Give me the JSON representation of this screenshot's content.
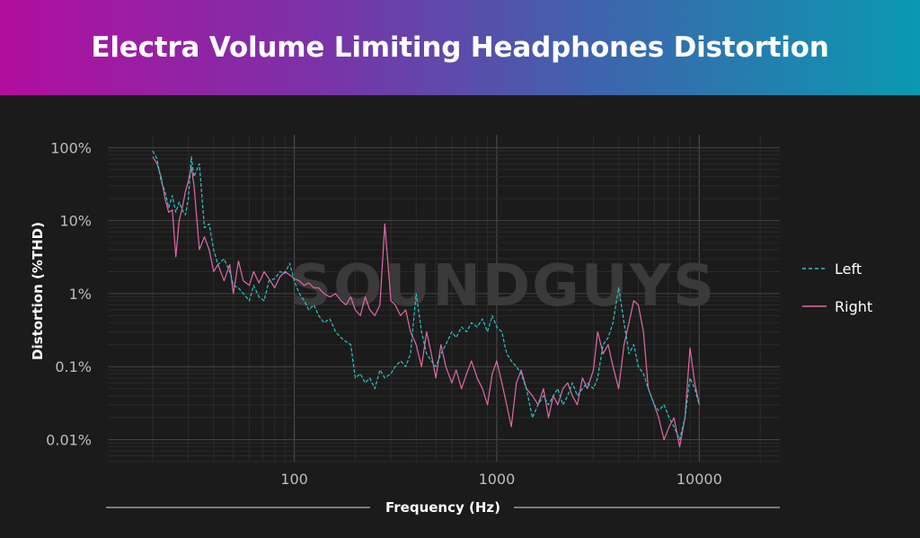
{
  "title": "Electra Volume Limiting Headphones Distortion",
  "watermark": "SOUNDGUYS",
  "chart_data": {
    "type": "line",
    "title": "Electra Volume Limiting Headphones Distortion",
    "xlabel": "Frequency (Hz)",
    "ylabel": "Distortion (%THD)",
    "x_scale": "log",
    "y_scale": "log",
    "xlim": [
      12,
      25000
    ],
    "ylim": [
      0.005,
      150
    ],
    "x_ticks": [
      100,
      1000,
      10000
    ],
    "x_tick_labels": [
      "100",
      "1000",
      "10000"
    ],
    "y_ticks": [
      100,
      10,
      1,
      0.1,
      0.01
    ],
    "y_tick_labels": [
      "100%",
      "10%",
      "1%",
      "0.1%",
      "0.01%"
    ],
    "grid": true,
    "legend_position": "right",
    "series": [
      {
        "name": "Left",
        "color": "#2ec4c6",
        "style": "dashed",
        "x": [
          20,
          21,
          22,
          23,
          24,
          25,
          26,
          27,
          28,
          29,
          30,
          31,
          32,
          34,
          36,
          38,
          40,
          42,
          45,
          48,
          50,
          53,
          56,
          60,
          63,
          67,
          71,
          75,
          80,
          85,
          90,
          95,
          100,
          106,
          112,
          118,
          125,
          132,
          140,
          150,
          160,
          170,
          180,
          190,
          200,
          212,
          224,
          236,
          250,
          265,
          280,
          300,
          315,
          335,
          355,
          375,
          400,
          425,
          450,
          475,
          500,
          530,
          560,
          600,
          630,
          670,
          710,
          750,
          800,
          850,
          900,
          950,
          1000,
          1060,
          1120,
          1180,
          1250,
          1320,
          1400,
          1500,
          1600,
          1700,
          1800,
          1900,
          2000,
          2120,
          2240,
          2360,
          2500,
          2650,
          2800,
          3000,
          3150,
          3350,
          3550,
          3750,
          4000,
          4250,
          4500,
          4750,
          5000,
          5300,
          5600,
          6000,
          6300,
          6700,
          7100,
          7500,
          8000,
          8500,
          9000,
          9500,
          10000
        ],
        "y": [
          90,
          70,
          35,
          25,
          15,
          22,
          13,
          18,
          14,
          12,
          20,
          75,
          40,
          60,
          8,
          9,
          4,
          2.5,
          3,
          2,
          1.3,
          1.2,
          1,
          0.8,
          1.3,
          0.9,
          0.8,
          1.5,
          1.6,
          2.0,
          1.9,
          2.6,
          1.5,
          1.0,
          0.8,
          0.6,
          0.7,
          0.5,
          0.4,
          0.45,
          0.3,
          0.25,
          0.22,
          0.2,
          0.07,
          0.08,
          0.06,
          0.07,
          0.05,
          0.09,
          0.07,
          0.08,
          0.1,
          0.12,
          0.1,
          0.15,
          1.0,
          0.3,
          0.15,
          0.12,
          0.1,
          0.15,
          0.2,
          0.3,
          0.25,
          0.35,
          0.3,
          0.4,
          0.35,
          0.45,
          0.3,
          0.5,
          0.35,
          0.3,
          0.15,
          0.12,
          0.1,
          0.08,
          0.05,
          0.02,
          0.03,
          0.04,
          0.03,
          0.04,
          0.05,
          0.03,
          0.04,
          0.06,
          0.04,
          0.05,
          0.06,
          0.05,
          0.07,
          0.2,
          0.25,
          0.4,
          1.2,
          0.4,
          0.15,
          0.2,
          0.1,
          0.08,
          0.05,
          0.03,
          0.025,
          0.03,
          0.02,
          0.015,
          0.01,
          0.02,
          0.07,
          0.05,
          0.03
        ]
      },
      {
        "name": "Right",
        "color": "#e06aa8",
        "style": "solid",
        "x": [
          20,
          21,
          22,
          23,
          24,
          25,
          26,
          27,
          28,
          29,
          30,
          31,
          32,
          34,
          36,
          38,
          40,
          42,
          45,
          48,
          50,
          53,
          56,
          60,
          63,
          67,
          71,
          75,
          80,
          85,
          90,
          95,
          100,
          106,
          112,
          118,
          125,
          132,
          140,
          150,
          160,
          170,
          180,
          190,
          200,
          212,
          224,
          236,
          250,
          265,
          280,
          300,
          315,
          335,
          355,
          375,
          400,
          425,
          450,
          475,
          500,
          530,
          560,
          600,
          630,
          670,
          710,
          750,
          800,
          850,
          900,
          950,
          1000,
          1060,
          1120,
          1180,
          1250,
          1320,
          1400,
          1500,
          1600,
          1700,
          1800,
          1900,
          2000,
          2120,
          2240,
          2360,
          2500,
          2650,
          2800,
          3000,
          3150,
          3350,
          3550,
          3750,
          4000,
          4250,
          4500,
          4750,
          5000,
          5300,
          5600,
          6000,
          6300,
          6700,
          7100,
          7500,
          8000,
          8500,
          9000,
          9500,
          10000
        ],
        "y": [
          75,
          60,
          40,
          20,
          13,
          14,
          3.2,
          10,
          15,
          25,
          35,
          55,
          30,
          4,
          6,
          4,
          2,
          2.5,
          1.5,
          2.5,
          1.0,
          2.8,
          1.5,
          1.3,
          2.0,
          1.4,
          2.0,
          1.6,
          1.2,
          1.7,
          2.0,
          1.8,
          1.6,
          1.5,
          1.3,
          1.4,
          1.2,
          1.2,
          1.0,
          0.9,
          1.0,
          0.8,
          0.7,
          0.9,
          0.6,
          0.5,
          0.9,
          0.6,
          0.5,
          0.7,
          9.0,
          0.8,
          0.7,
          0.5,
          0.6,
          0.3,
          0.2,
          0.1,
          0.3,
          0.15,
          0.07,
          0.2,
          0.1,
          0.06,
          0.09,
          0.05,
          0.08,
          0.12,
          0.07,
          0.05,
          0.03,
          0.08,
          0.12,
          0.06,
          0.03,
          0.015,
          0.06,
          0.09,
          0.05,
          0.04,
          0.03,
          0.05,
          0.02,
          0.04,
          0.03,
          0.05,
          0.06,
          0.04,
          0.03,
          0.07,
          0.05,
          0.09,
          0.3,
          0.15,
          0.2,
          0.1,
          0.05,
          0.2,
          0.4,
          0.8,
          0.7,
          0.3,
          0.05,
          0.03,
          0.02,
          0.01,
          0.015,
          0.02,
          0.008,
          0.02,
          0.18,
          0.06,
          0.03
        ]
      }
    ]
  }
}
